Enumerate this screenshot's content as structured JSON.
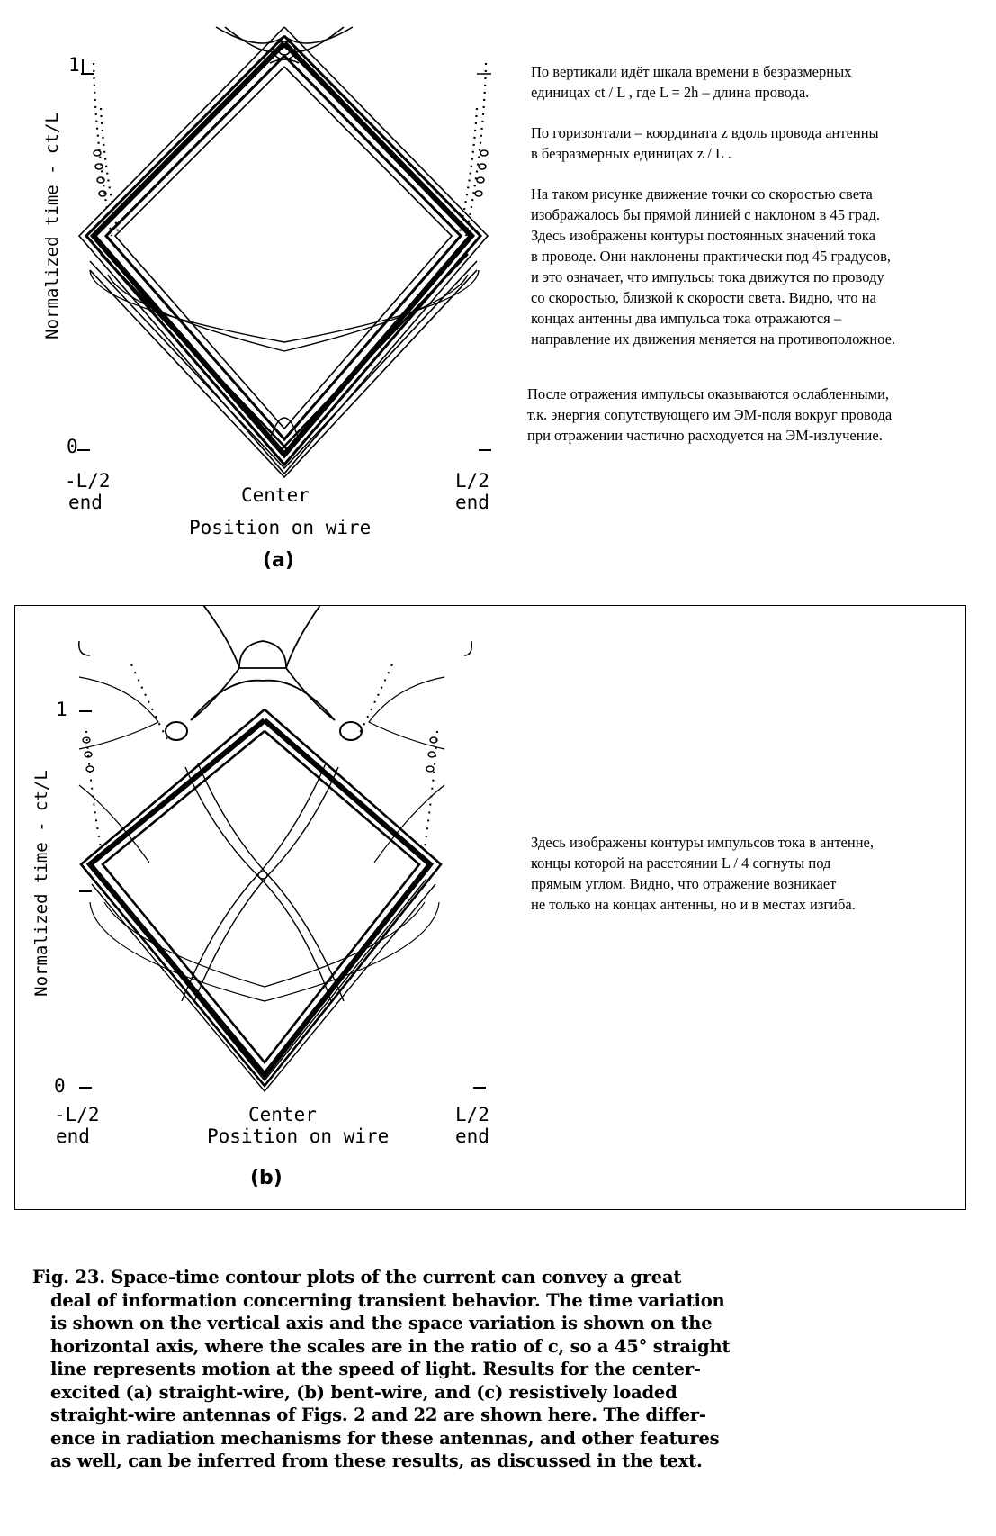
{
  "figure_a": {
    "ylabel": "Normalized time - ct/L",
    "y_tick_top": "1",
    "y_tick_bottom": "0",
    "x_left_1": "-L/2",
    "x_left_2": "end",
    "x_center": "Center",
    "x_right_1": "L/2",
    "x_right_2": "end",
    "xlabel": "Position on wire",
    "panel_label": "(a)"
  },
  "figure_b": {
    "ylabel": "Normalized time - ct/L",
    "y_tick_top": "1",
    "y_tick_bottom": "0",
    "x_left_1": "-L/2",
    "x_left_2": "end",
    "x_center": "Center",
    "x_right_1": "L/2",
    "x_right_2": "end",
    "xlabel": "Position on wire",
    "panel_label": "(b)"
  },
  "notes_a": {
    "p1": "По вертикали идёт шкала времени в безразмерных\nединицах  ct / L ,  где   L = 2h  –  длина  провода.",
    "p2": "По горизонтали – координата  z  вдоль провода антенны\nв безразмерных единицах  z / L .",
    "p3": "На таком рисунке движение точки со скоростью света\nизображалось бы прямой линией с наклоном в 45 град.\nЗдесь изображены контуры постоянных значений тока\nв проводе. Они наклонены практически под 45 градусов,\nи это означает, что импульсы тока движутся по проводу\nсо скоростью, близкой к скорости света. Видно, что на\nконцах  антенны  два  импульса  тока  отражаются –\nнаправление их движения меняется на противоположное.",
    "p4": "После отражения импульсы оказываются ослабленными,\nт.к. энергия сопутствующего им ЭМ-поля вокруг провода\nпри отражении частично расходуется на ЭМ-излучение."
  },
  "notes_b": {
    "p1": "Здесь изображены контуры импульсов тока в антенне,\nконцы  которой  на  расстоянии  L / 4  согнуты   под\nпрямым  углом.  Видно,  что  отражение  возникает\nне только на концах антенны,  но  и  в  местах  изгиба."
  },
  "caption": {
    "l1": "Fig. 23.  Space-time contour plots of the current can convey a great",
    "l2": "deal of information concerning transient behavior.  The time variation",
    "l3": "is shown on the vertical axis and the space variation is shown on the",
    "l4": "horizontal axis, where the scales are in the ratio of c, so a 45° straight",
    "l5": "line represents motion at the speed of light.   Results for the center-",
    "l6": "excited  (a)  straight-wire,  (b)  bent-wire,  and  (c)  resistively  loaded",
    "l7": "straight-wire antennas of Figs. 2 and 22 are shown here.  The differ-",
    "l8": "ence in radiation mechanisms for these antennas, and other features",
    "l9": "as well, can be inferred from these results, as discussed in the text."
  }
}
